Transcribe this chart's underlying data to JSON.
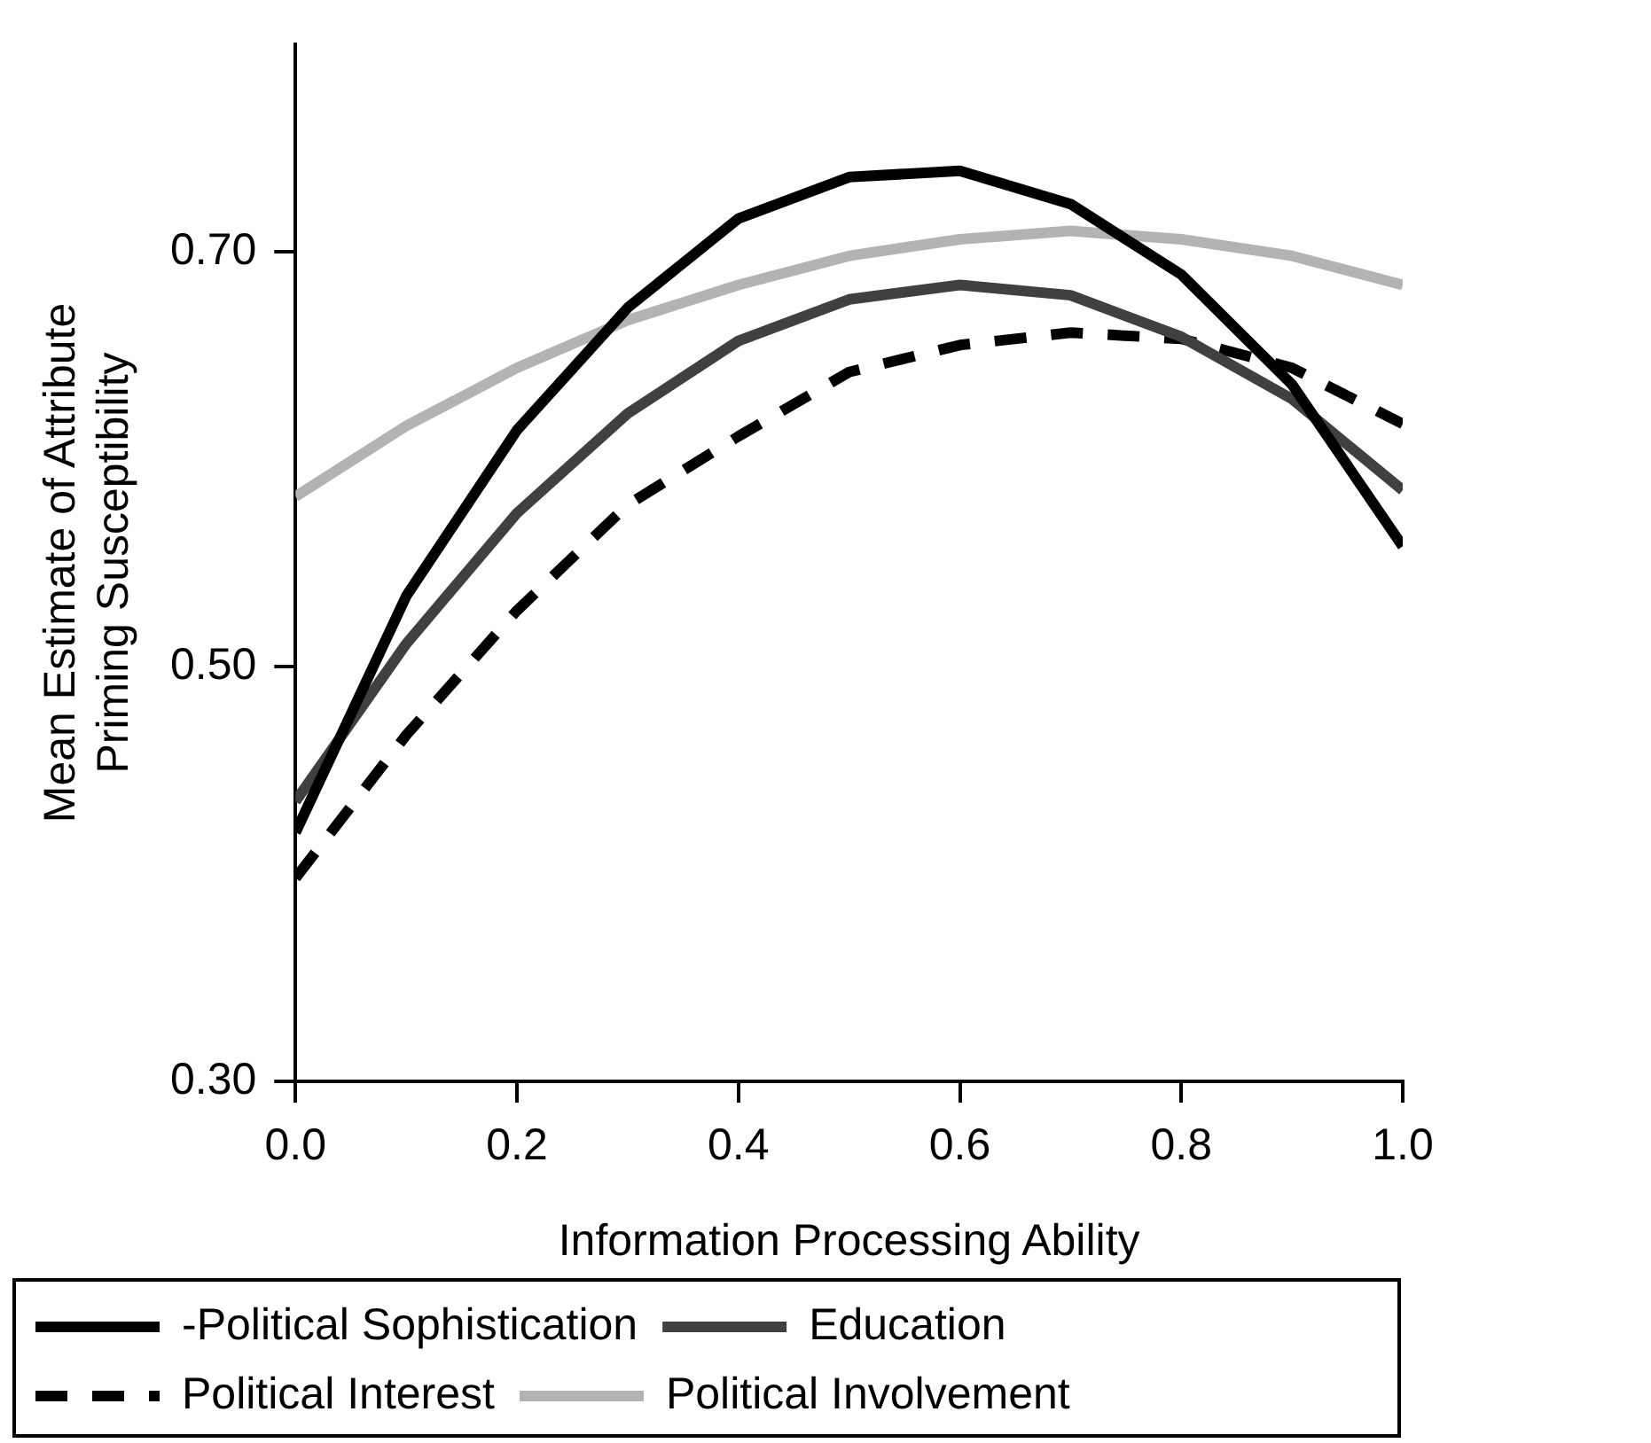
{
  "chart_data": {
    "type": "line",
    "xlabel": "Information Processing Ability",
    "ylabel": "Mean Estimate of Attribute\nPriming Susceptibility",
    "x": [
      0,
      0.1,
      0.2,
      0.3,
      0.4,
      0.5,
      0.6,
      0.7,
      0.8,
      0.9,
      1.0
    ],
    "series": [
      {
        "name": "-Political Sophistication",
        "color": "#000000",
        "line_style": "solid",
        "values": [
          0.42,
          0.534,
          0.614,
          0.673,
          0.716,
          0.736,
          0.739,
          0.723,
          0.689,
          0.636,
          0.558
        ]
      },
      {
        "name": "Education",
        "color": "#404040",
        "line_style": "solid",
        "values": [
          0.435,
          0.511,
          0.574,
          0.622,
          0.657,
          0.677,
          0.684,
          0.679,
          0.659,
          0.629,
          0.585
        ]
      },
      {
        "name": "Political Interest",
        "color": "#000000",
        "line_style": "dashed",
        "values": [
          0.398,
          0.467,
          0.527,
          0.578,
          0.611,
          0.642,
          0.655,
          0.661,
          0.658,
          0.644,
          0.617
        ]
      },
      {
        "name": "Political Involvement",
        "color": "#b3b3b3",
        "line_style": "solid",
        "values": [
          0.582,
          0.616,
          0.644,
          0.667,
          0.684,
          0.698,
          0.706,
          0.71,
          0.706,
          0.698,
          0.684
        ]
      }
    ],
    "xlim": [
      0,
      1
    ],
    "xticks": [
      {
        "value": 0,
        "label": "0.0"
      },
      {
        "value": 0.2,
        "label": "0.2"
      },
      {
        "value": 0.4,
        "label": "0.4"
      },
      {
        "value": 0.6,
        "label": "0.6"
      },
      {
        "value": 0.8,
        "label": "0.8"
      },
      {
        "value": 1,
        "label": "1.0"
      }
    ],
    "ylim": [
      0.3,
      0.8
    ],
    "yticks": [
      {
        "value": 0.3,
        "label": "0.30"
      },
      {
        "value": 0.5,
        "label": "0.50"
      },
      {
        "value": 0.7,
        "label": "0.70"
      }
    ],
    "grid": false,
    "legend": "bottom",
    "marker": "none"
  }
}
